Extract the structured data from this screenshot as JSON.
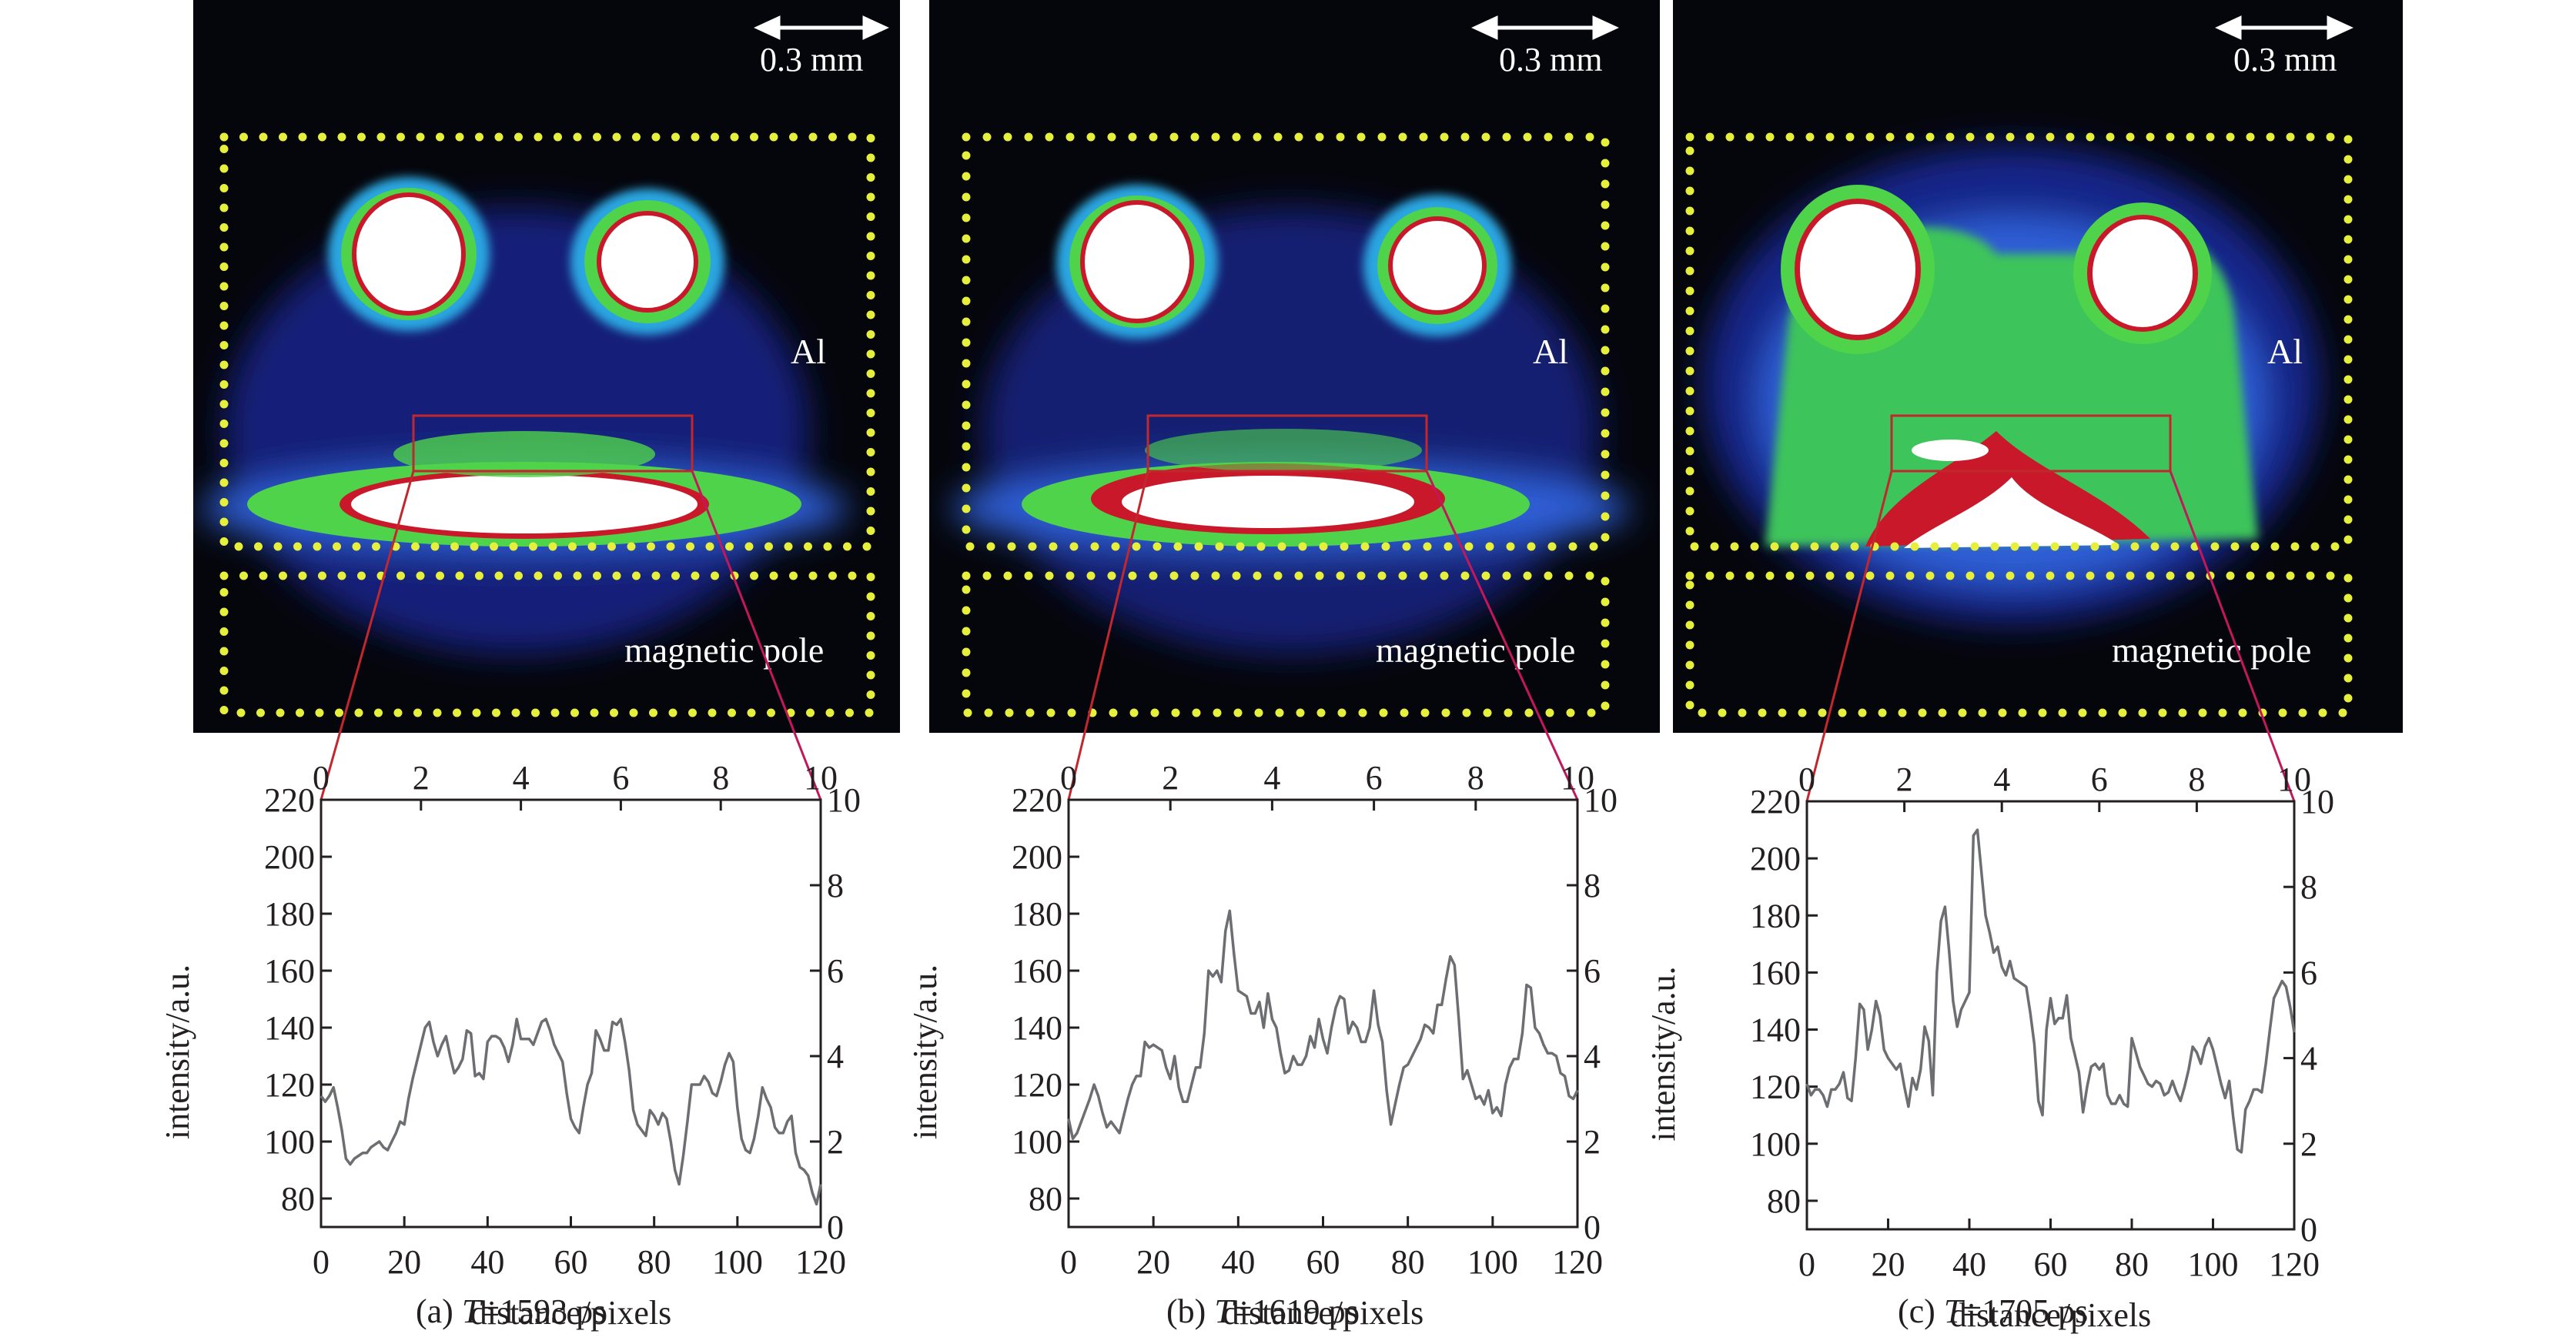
{
  "panels": [
    {
      "id": "a",
      "scale_label": "0.3 mm",
      "region_label": "Al",
      "pole_label": "magnetic pole",
      "caption_prefix": "(a) ",
      "caption_var": "T",
      "caption_value": "=1593 ps"
    },
    {
      "id": "b",
      "scale_label": "0.3 mm",
      "region_label": "Al",
      "pole_label": "magnetic pole",
      "caption_prefix": "(b) ",
      "caption_var": "T",
      "caption_value": "=1619 ps"
    },
    {
      "id": "c",
      "scale_label": "0.3 mm",
      "region_label": "Al",
      "pole_label": "magnetic pole",
      "caption_prefix": "(c) ",
      "caption_var": "T",
      "caption_value": "=1705 ps"
    }
  ],
  "colors": {
    "line": "#6d6e71",
    "axis": "#231f20",
    "roi": "#c1272d",
    "roi_right": "#c2185b",
    "dots": "#e6f03c",
    "background": "#05060c"
  },
  "chart_data": [
    {
      "type": "line",
      "title": "(a) T=1593 ps",
      "xlabel": "distance/pixels",
      "ylabel": "intensity/a.u.",
      "xlim": [
        0,
        120
      ],
      "ylim": [
        70,
        220
      ],
      "xticks": [
        0,
        20,
        40,
        60,
        80,
        100,
        120
      ],
      "yticks": [
        80,
        100,
        120,
        140,
        160,
        180,
        200,
        220
      ],
      "top_xlim": [
        0,
        10
      ],
      "top_xticks": [
        0,
        2,
        4,
        6,
        8,
        10
      ],
      "right_ylim": [
        0,
        10
      ],
      "right_yticks": [
        0,
        2,
        4,
        6,
        8,
        10
      ],
      "grid": false,
      "x": [
        0,
        1,
        2,
        3,
        4,
        5,
        6,
        7,
        8,
        9,
        10,
        11,
        12,
        13,
        14,
        15,
        16,
        17,
        18,
        19,
        20,
        21,
        22,
        23,
        24,
        25,
        26,
        27,
        28,
        29,
        30,
        31,
        32,
        33,
        34,
        35,
        36,
        37,
        38,
        39,
        40,
        41,
        42,
        43,
        44,
        45,
        46,
        47,
        48,
        49,
        50,
        51,
        52,
        53,
        54,
        55,
        56,
        57,
        58,
        59,
        60,
        61,
        62,
        63,
        64,
        65,
        66,
        67,
        68,
        69,
        70,
        71,
        72,
        73,
        74,
        75,
        76,
        77,
        78,
        79,
        80,
        81,
        82,
        83,
        84,
        85,
        86,
        87,
        88,
        89,
        90,
        91,
        92,
        93,
        94,
        95,
        96,
        97,
        98,
        99,
        100,
        101,
        102,
        103,
        104,
        105,
        106,
        107,
        108,
        109,
        110,
        111,
        112,
        113,
        114,
        115,
        116,
        117,
        118,
        119,
        120
      ],
      "values": [
        116,
        114,
        116,
        119,
        112,
        104,
        94,
        92,
        94,
        95,
        96,
        96,
        98,
        99,
        100,
        98,
        97,
        100,
        103,
        107,
        106,
        115,
        122,
        128,
        134,
        140,
        142,
        135,
        130,
        134,
        137,
        130,
        124,
        126,
        129,
        139,
        138,
        123,
        124,
        122,
        135,
        137,
        137,
        136,
        133,
        128,
        134,
        143,
        136,
        136,
        136,
        134,
        138,
        142,
        143,
        139,
        134,
        131,
        128,
        117,
        108,
        105,
        103,
        112,
        120,
        124,
        139,
        136,
        132,
        132,
        142,
        141,
        143,
        135,
        125,
        111,
        106,
        104,
        102,
        111,
        109,
        106,
        110,
        108,
        100,
        90,
        85,
        95,
        107,
        120,
        120,
        120,
        123,
        121,
        117,
        116,
        121,
        127,
        131,
        128,
        112,
        101,
        97,
        96,
        101,
        109,
        119,
        115,
        112,
        105,
        103,
        103,
        107,
        109,
        96,
        91,
        90,
        88,
        82,
        78,
        85
      ],
      "legend": []
    },
    {
      "type": "line",
      "title": "(b) T=1619 ps",
      "xlabel": "distance/pixels",
      "ylabel": "intensity/a.u.",
      "xlim": [
        0,
        120
      ],
      "ylim": [
        70,
        220
      ],
      "xticks": [
        0,
        20,
        40,
        60,
        80,
        100,
        120
      ],
      "yticks": [
        80,
        100,
        120,
        140,
        160,
        180,
        200,
        220
      ],
      "top_xlim": [
        0,
        10
      ],
      "top_xticks": [
        0,
        2,
        4,
        6,
        8,
        10
      ],
      "right_ylim": [
        0,
        10
      ],
      "right_yticks": [
        0,
        2,
        4,
        6,
        8,
        10
      ],
      "grid": false,
      "x": [
        0,
        1,
        2,
        3,
        4,
        5,
        6,
        7,
        8,
        9,
        10,
        11,
        12,
        13,
        14,
        15,
        16,
        17,
        18,
        19,
        20,
        21,
        22,
        23,
        24,
        25,
        26,
        27,
        28,
        29,
        30,
        31,
        32,
        33,
        34,
        35,
        36,
        37,
        38,
        39,
        40,
        41,
        42,
        43,
        44,
        45,
        46,
        47,
        48,
        49,
        50,
        51,
        52,
        53,
        54,
        55,
        56,
        57,
        58,
        59,
        60,
        61,
        62,
        63,
        64,
        65,
        66,
        67,
        68,
        69,
        70,
        71,
        72,
        73,
        74,
        75,
        76,
        77,
        78,
        79,
        80,
        81,
        82,
        83,
        84,
        85,
        86,
        87,
        88,
        89,
        90,
        91,
        92,
        93,
        94,
        95,
        96,
        97,
        98,
        99,
        100,
        101,
        102,
        103,
        104,
        105,
        106,
        107,
        108,
        109,
        110,
        111,
        112,
        113,
        114,
        115,
        116,
        117,
        118,
        119,
        120
      ],
      "values": [
        108,
        101,
        103,
        107,
        111,
        115,
        120,
        116,
        110,
        105,
        107,
        105,
        103,
        109,
        115,
        120,
        123,
        123,
        135,
        133,
        134,
        133,
        132,
        126,
        122,
        130,
        119,
        114,
        114,
        120,
        126,
        126,
        138,
        160,
        158,
        160,
        156,
        174,
        181,
        166,
        153,
        152,
        151,
        145,
        145,
        149,
        140,
        152,
        143,
        140,
        131,
        124,
        125,
        130,
        127,
        127,
        130,
        137,
        133,
        143,
        136,
        131,
        140,
        147,
        151,
        150,
        138,
        142,
        140,
        135,
        135,
        140,
        153,
        141,
        135,
        118,
        106,
        113,
        120,
        126,
        127,
        130,
        133,
        136,
        141,
        140,
        138,
        148,
        148,
        157,
        165,
        162,
        143,
        122,
        125,
        120,
        115,
        116,
        113,
        118,
        110,
        112,
        109,
        120,
        126,
        129,
        129,
        138,
        155,
        154,
        140,
        138,
        134,
        131,
        131,
        130,
        124,
        123,
        116,
        115,
        118
      ],
      "legend": []
    },
    {
      "type": "line",
      "title": "(c) T=1705 ps",
      "xlabel": "distance/pixels",
      "ylabel": "intensity/a.u.",
      "xlim": [
        0,
        120
      ],
      "ylim": [
        70,
        220
      ],
      "xticks": [
        0,
        20,
        40,
        60,
        80,
        100,
        120
      ],
      "yticks": [
        80,
        100,
        120,
        140,
        160,
        180,
        200,
        220
      ],
      "top_xlim": [
        0,
        10
      ],
      "top_xticks": [
        0,
        2,
        4,
        6,
        8,
        10
      ],
      "right_ylim": [
        0,
        10
      ],
      "right_yticks": [
        0,
        2,
        4,
        6,
        8,
        10
      ],
      "grid": false,
      "x": [
        0,
        1,
        2,
        3,
        4,
        5,
        6,
        7,
        8,
        9,
        10,
        11,
        12,
        13,
        14,
        15,
        16,
        17,
        18,
        19,
        20,
        21,
        22,
        23,
        24,
        25,
        26,
        27,
        28,
        29,
        30,
        31,
        32,
        33,
        34,
        35,
        36,
        37,
        38,
        39,
        40,
        41,
        42,
        43,
        44,
        45,
        46,
        47,
        48,
        49,
        50,
        51,
        52,
        53,
        54,
        55,
        56,
        57,
        58,
        59,
        60,
        61,
        62,
        63,
        64,
        65,
        66,
        67,
        68,
        69,
        70,
        71,
        72,
        73,
        74,
        75,
        76,
        77,
        78,
        79,
        80,
        81,
        82,
        83,
        84,
        85,
        86,
        87,
        88,
        89,
        90,
        91,
        92,
        93,
        94,
        95,
        96,
        97,
        98,
        99,
        100,
        101,
        102,
        103,
        104,
        105,
        106,
        107,
        108,
        109,
        110,
        111,
        112,
        113,
        114,
        115,
        116,
        117,
        118,
        119,
        120
      ],
      "values": [
        121,
        117,
        119,
        119,
        117,
        113,
        119,
        119,
        121,
        125,
        116,
        115,
        130,
        149,
        147,
        133,
        140,
        150,
        145,
        133,
        130,
        128,
        126,
        128,
        120,
        113,
        123,
        119,
        126,
        141,
        136,
        117,
        160,
        178,
        183,
        168,
        150,
        141,
        147,
        150,
        153,
        208,
        210,
        195,
        180,
        174,
        167,
        169,
        162,
        159,
        164,
        158,
        157,
        156,
        155,
        146,
        135,
        115,
        110,
        140,
        151,
        142,
        144,
        144,
        152,
        137,
        131,
        125,
        111,
        120,
        127,
        128,
        126,
        128,
        117,
        114,
        114,
        117,
        114,
        113,
        137,
        132,
        127,
        124,
        121,
        120,
        122,
        121,
        117,
        118,
        122,
        118,
        115,
        120,
        126,
        134,
        132,
        128,
        134,
        137,
        133,
        127,
        121,
        116,
        122,
        109,
        98,
        97,
        112,
        115,
        119,
        119,
        118,
        128,
        140,
        151,
        154,
        157,
        155,
        148,
        139
      ],
      "legend": []
    }
  ]
}
